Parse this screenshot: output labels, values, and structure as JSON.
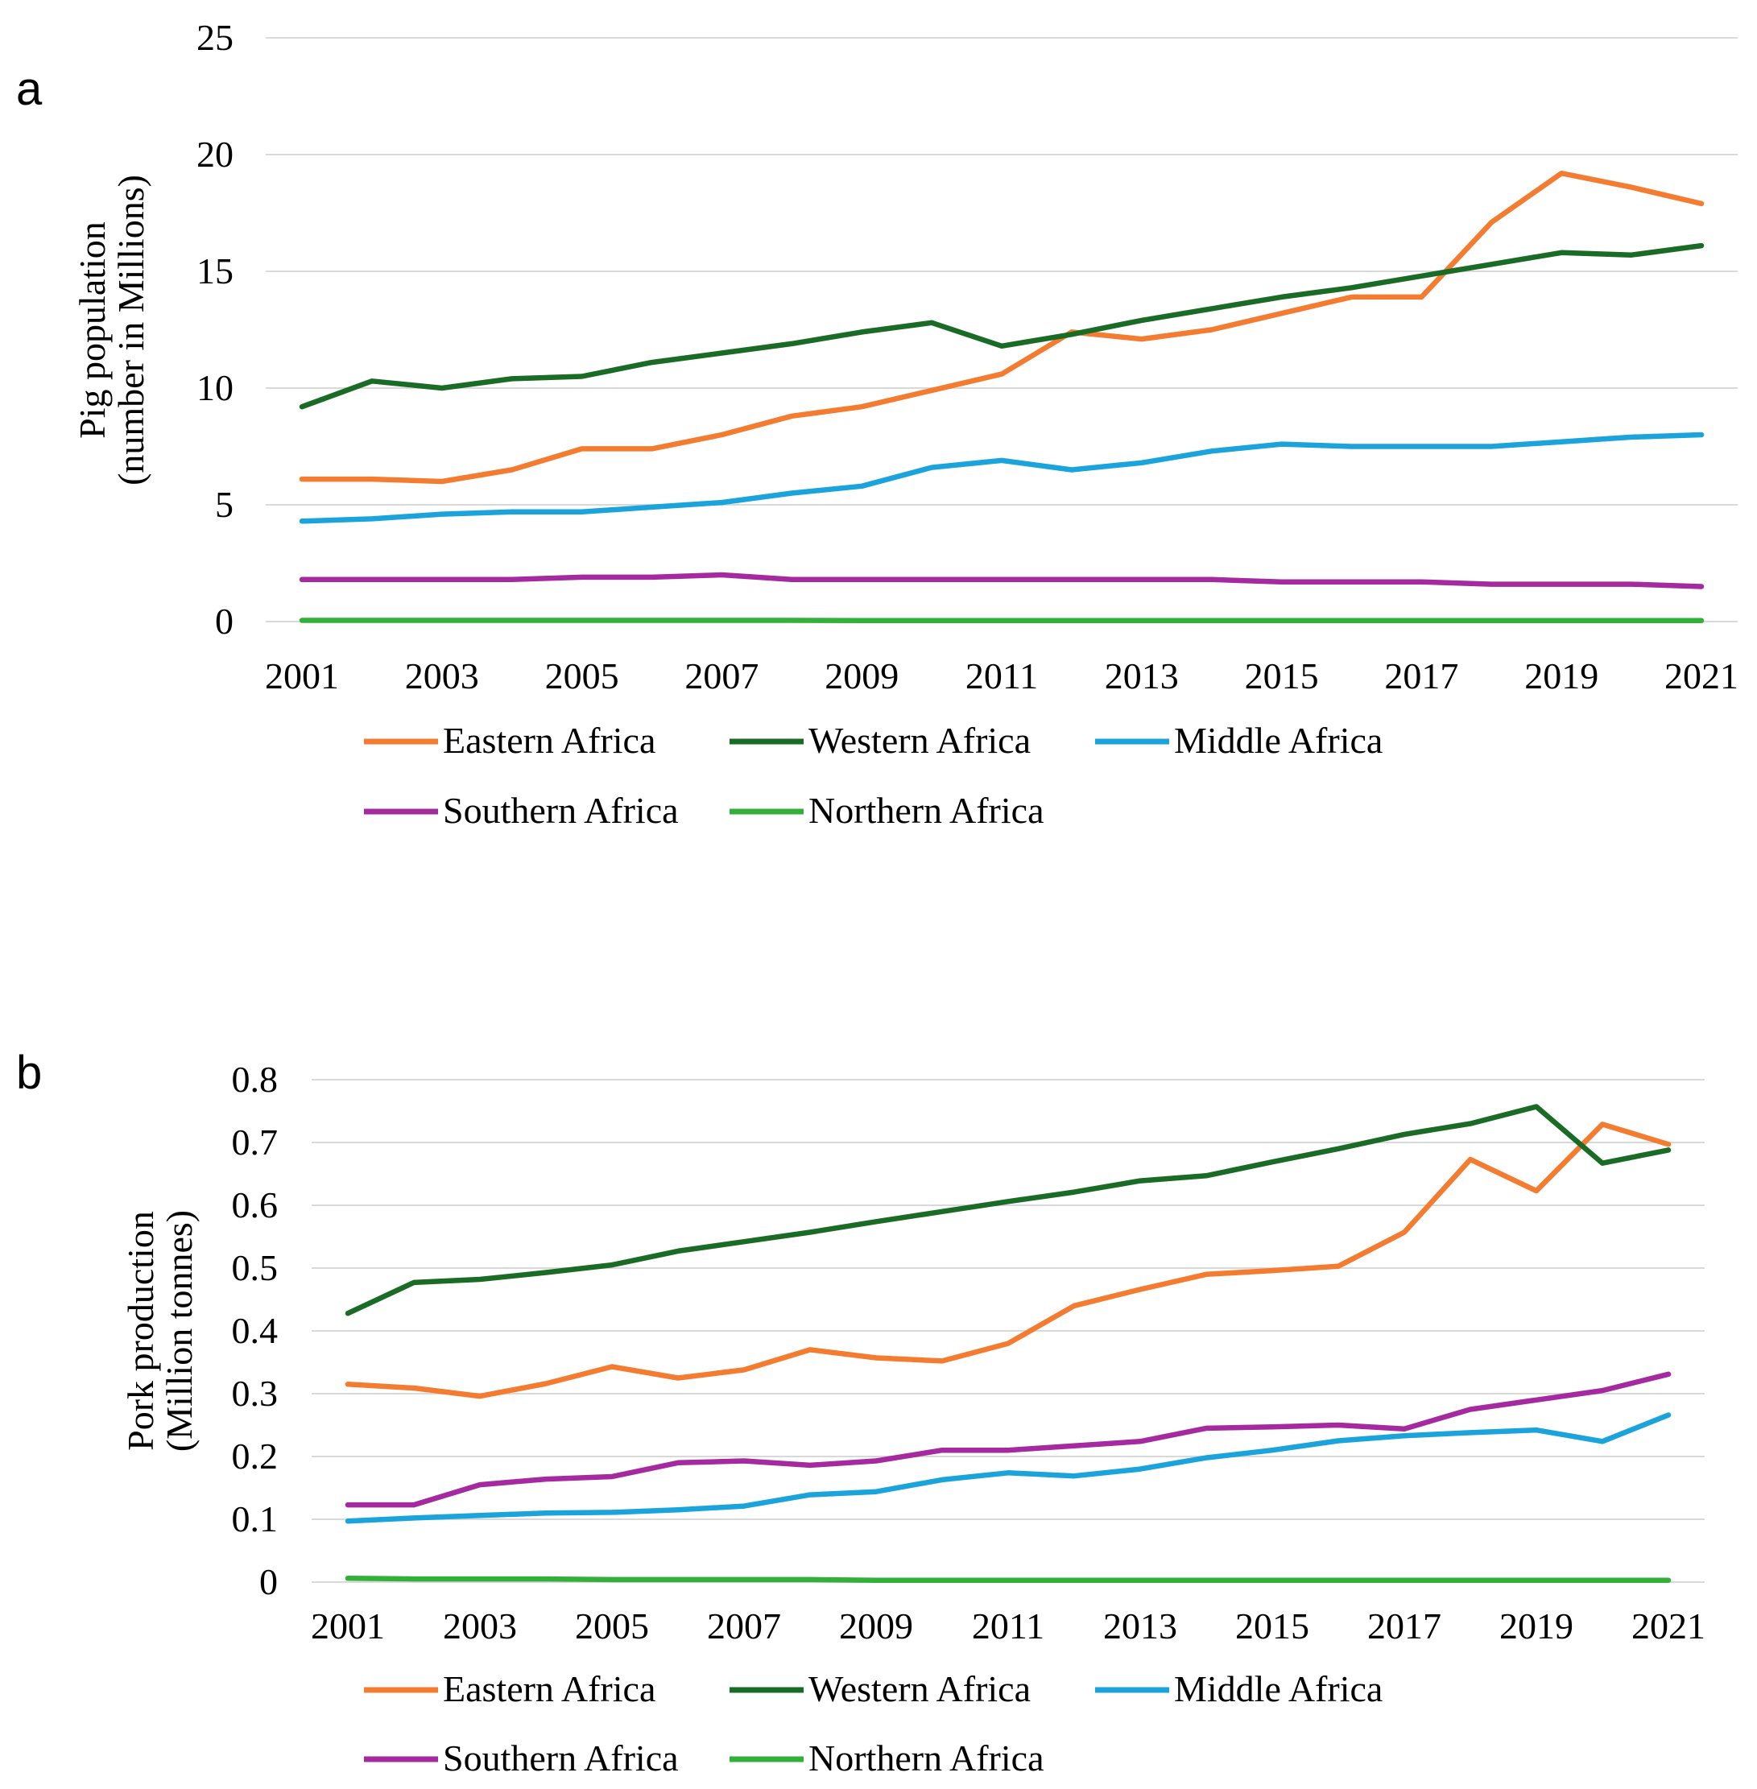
{
  "chart_data": [
    {
      "panel_label": "a",
      "type": "line",
      "title": "",
      "xlabel": "",
      "ylabel_lines": [
        "Pig population",
        "(number in Millions)"
      ],
      "ylim": [
        0,
        25
      ],
      "yticks": [
        0,
        5,
        10,
        15,
        20,
        25
      ],
      "ytick_labels": [
        "0",
        "5",
        "10",
        "15",
        "20",
        "25"
      ],
      "x": [
        2001,
        2002,
        2003,
        2004,
        2005,
        2006,
        2007,
        2008,
        2009,
        2010,
        2011,
        2012,
        2013,
        2014,
        2015,
        2016,
        2017,
        2018,
        2019,
        2020,
        2021
      ],
      "xtick_labels": [
        "2001",
        "2003",
        "2005",
        "2007",
        "2009",
        "2011",
        "2013",
        "2015",
        "2017",
        "2019",
        "2021"
      ],
      "grid": true,
      "legend_position": "bottom",
      "series": [
        {
          "name": "Eastern Africa",
          "color": "#f47c30",
          "values": [
            6.1,
            6.1,
            6.0,
            6.5,
            7.4,
            7.4,
            8.0,
            8.8,
            9.2,
            9.9,
            10.6,
            12.4,
            12.1,
            12.5,
            13.2,
            13.9,
            13.9,
            17.1,
            19.2,
            18.6,
            17.9
          ]
        },
        {
          "name": "Western Africa",
          "color": "#1a6b25",
          "values": [
            9.2,
            10.3,
            10.0,
            10.4,
            10.5,
            11.1,
            11.5,
            11.9,
            12.4,
            12.8,
            11.8,
            12.3,
            12.9,
            13.4,
            13.9,
            14.3,
            14.8,
            15.3,
            15.8,
            15.7,
            16.1
          ]
        },
        {
          "name": "Middle Africa",
          "color": "#1ba3dc",
          "values": [
            4.3,
            4.4,
            4.6,
            4.7,
            4.7,
            4.9,
            5.1,
            5.5,
            5.8,
            6.6,
            6.9,
            6.5,
            6.8,
            7.3,
            7.6,
            7.5,
            7.5,
            7.5,
            7.7,
            7.9,
            8.0
          ]
        },
        {
          "name": "Southern Africa",
          "color": "#a52aa0",
          "values": [
            1.8,
            1.8,
            1.8,
            1.8,
            1.9,
            1.9,
            2.0,
            1.8,
            1.8,
            1.8,
            1.8,
            1.8,
            1.8,
            1.8,
            1.7,
            1.7,
            1.7,
            1.6,
            1.6,
            1.6,
            1.5
          ]
        },
        {
          "name": "Northern Africa",
          "color": "#33b039",
          "values": [
            0.05,
            0.05,
            0.05,
            0.05,
            0.05,
            0.05,
            0.05,
            0.05,
            0.04,
            0.04,
            0.04,
            0.04,
            0.04,
            0.04,
            0.04,
            0.04,
            0.04,
            0.04,
            0.04,
            0.04,
            0.04
          ]
        }
      ]
    },
    {
      "panel_label": "b",
      "type": "line",
      "title": "",
      "xlabel": "",
      "ylabel_lines": [
        "Pork production",
        "(Million tonnes)"
      ],
      "ylim": [
        0,
        0.8
      ],
      "yticks": [
        0,
        0.1,
        0.2,
        0.3,
        0.4,
        0.5,
        0.6,
        0.7,
        0.8
      ],
      "ytick_labels": [
        "0",
        "0.1",
        "0.2",
        "0.3",
        "0.4",
        "0.5",
        "0.6",
        "0.7",
        "0.8"
      ],
      "x": [
        2001,
        2002,
        2003,
        2004,
        2005,
        2006,
        2007,
        2008,
        2009,
        2010,
        2011,
        2012,
        2013,
        2014,
        2015,
        2016,
        2017,
        2018,
        2019,
        2020,
        2021
      ],
      "xtick_labels": [
        "2001",
        "2003",
        "2005",
        "2007",
        "2009",
        "2011",
        "2013",
        "2015",
        "2017",
        "2019",
        "2021"
      ],
      "grid": true,
      "legend_position": "bottom",
      "series": [
        {
          "name": "Eastern Africa",
          "color": "#f47c30",
          "values": [
            0.315,
            0.309,
            0.296,
            0.316,
            0.343,
            0.325,
            0.338,
            0.37,
            0.357,
            0.352,
            0.38,
            0.44,
            0.466,
            0.49,
            0.496,
            0.503,
            0.557,
            0.673,
            0.623,
            0.729,
            0.697
          ]
        },
        {
          "name": "Western Africa",
          "color": "#1a6b25",
          "values": [
            0.428,
            0.477,
            0.482,
            0.493,
            0.505,
            0.527,
            0.542,
            0.557,
            0.574,
            0.59,
            0.606,
            0.621,
            0.639,
            0.647,
            0.669,
            0.69,
            0.713,
            0.73,
            0.757,
            0.667,
            0.688
          ]
        },
        {
          "name": "Middle Africa",
          "color": "#1ba3dc",
          "values": [
            0.097,
            0.102,
            0.106,
            0.11,
            0.111,
            0.115,
            0.121,
            0.139,
            0.144,
            0.163,
            0.174,
            0.169,
            0.18,
            0.198,
            0.21,
            0.225,
            0.233,
            0.238,
            0.242,
            0.224,
            0.266
          ]
        },
        {
          "name": "Southern Africa",
          "color": "#a52aa0",
          "values": [
            0.123,
            0.123,
            0.155,
            0.164,
            0.168,
            0.19,
            0.193,
            0.186,
            0.193,
            0.21,
            0.21,
            0.217,
            0.224,
            0.245,
            0.247,
            0.25,
            0.244,
            0.275,
            0.29,
            0.305,
            0.331
          ]
        },
        {
          "name": "Northern Africa",
          "color": "#33b039",
          "values": [
            0.006,
            0.005,
            0.005,
            0.005,
            0.004,
            0.004,
            0.004,
            0.004,
            0.003,
            0.003,
            0.003,
            0.003,
            0.003,
            0.003,
            0.003,
            0.003,
            0.003,
            0.003,
            0.003,
            0.003,
            0.003
          ]
        }
      ]
    }
  ]
}
